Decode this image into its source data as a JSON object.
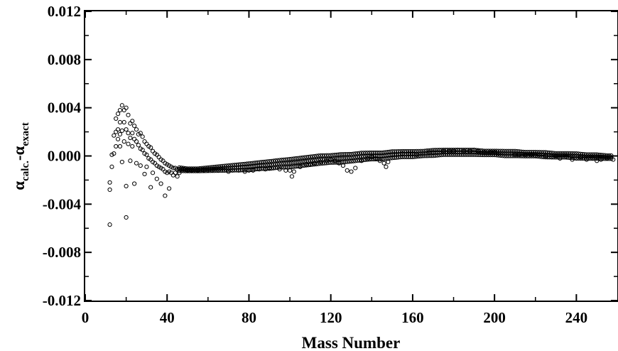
{
  "chart_data": {
    "type": "scatter",
    "title": "",
    "xlabel": "Mass Number",
    "ylabel": {
      "alpha_symbol": "α",
      "sub1": "calc.",
      "minus": "-",
      "sub2": "exact"
    },
    "xlim": [
      0,
      260
    ],
    "ylim": [
      -0.012,
      0.012
    ],
    "x_ticks": [
      0,
      40,
      80,
      120,
      160,
      200,
      240
    ],
    "x_tick_labels": [
      "0",
      "40",
      "80",
      "120",
      "160",
      "200",
      "240"
    ],
    "y_ticks": [
      -0.012,
      -0.008,
      -0.004,
      0,
      0.004,
      0.008,
      0.012
    ],
    "y_tick_labels": [
      "-0.012",
      "-0.008",
      "-0.004",
      "0.000",
      "0.004",
      "0.008",
      "0.012"
    ],
    "grid": false,
    "legend": "none",
    "marker": "open-circle",
    "marker_color": "#000000",
    "points": [
      [
        12,
        -0.0057
      ],
      [
        12,
        -0.0028
      ],
      [
        12,
        -0.0022
      ],
      [
        13,
        0.0001
      ],
      [
        13,
        -0.0009
      ],
      [
        14,
        0.0017
      ],
      [
        14,
        0.0002
      ],
      [
        15,
        0.0031
      ],
      [
        15,
        0.002
      ],
      [
        15,
        0.0008
      ],
      [
        16,
        0.0035
      ],
      [
        16,
        0.0022
      ],
      [
        16,
        0.0014
      ],
      [
        17,
        0.0038
      ],
      [
        17,
        0.0028
      ],
      [
        17,
        0.0018
      ],
      [
        17,
        0.0008
      ],
      [
        18,
        0.0042
      ],
      [
        18,
        0.0021
      ],
      [
        18,
        -0.0005
      ],
      [
        19,
        0.0038
      ],
      [
        19,
        0.0028
      ],
      [
        19,
        0.0012
      ],
      [
        20,
        0.004
      ],
      [
        20,
        0.0022
      ],
      [
        20,
        -0.0025
      ],
      [
        20,
        -0.0051
      ],
      [
        21,
        0.0034
      ],
      [
        21,
        0.0019
      ],
      [
        21,
        0.001
      ],
      [
        22,
        0.0027
      ],
      [
        22,
        0.0015
      ],
      [
        22,
        -0.0004
      ],
      [
        23,
        0.0029
      ],
      [
        23,
        0.0019
      ],
      [
        23,
        0.0008
      ],
      [
        24,
        0.0025
      ],
      [
        24,
        0.0014
      ],
      [
        24,
        -0.0023
      ],
      [
        25,
        0.0022
      ],
      [
        25,
        0.0012
      ],
      [
        25,
        -0.0006
      ],
      [
        26,
        0.0018
      ],
      [
        26,
        0.0009
      ],
      [
        27,
        0.0019
      ],
      [
        27,
        0.0006
      ],
      [
        27,
        -0.0008
      ],
      [
        28,
        0.0016
      ],
      [
        28,
        0.0005
      ],
      [
        29,
        0.0012
      ],
      [
        29,
        0.0002
      ],
      [
        29,
        -0.0015
      ],
      [
        30,
        0.001
      ],
      [
        30,
        0.0001
      ],
      [
        30,
        -0.0009
      ],
      [
        31,
        0.0008
      ],
      [
        31,
        -0.0002
      ],
      [
        32,
        0.0007
      ],
      [
        32,
        -0.0003
      ],
      [
        32,
        -0.0026
      ],
      [
        33,
        0.0004
      ],
      [
        33,
        -0.0005
      ],
      [
        33,
        -0.0014
      ],
      [
        34,
        0.0002
      ],
      [
        34,
        -0.0006
      ],
      [
        35,
        0.0001
      ],
      [
        35,
        -0.0008
      ],
      [
        35,
        -0.0019
      ],
      [
        36,
        -0.0001
      ],
      [
        36,
        -0.0009
      ],
      [
        37,
        -0.0003
      ],
      [
        37,
        -0.001
      ],
      [
        37,
        -0.0023
      ],
      [
        38,
        -0.0004
      ],
      [
        38,
        -0.0011
      ],
      [
        39,
        -0.0006
      ],
      [
        39,
        -0.0013
      ],
      [
        39,
        -0.0033
      ],
      [
        40,
        -0.0007
      ],
      [
        40,
        -0.0014
      ],
      [
        41,
        -0.0008
      ],
      [
        41,
        -0.0013
      ],
      [
        41,
        -0.0027
      ],
      [
        42,
        -0.0009
      ],
      [
        42,
        -0.0014
      ],
      [
        43,
        -0.001
      ],
      [
        43,
        -0.0016
      ],
      [
        44,
        -0.001
      ],
      [
        44,
        -0.0014
      ],
      [
        45,
        -0.0011
      ],
      [
        45,
        -0.0017
      ],
      [
        46,
        -0.0011
      ],
      [
        46,
        -0.0014
      ],
      [
        48,
        -0.0011
      ],
      [
        50,
        -0.0012
      ],
      [
        52,
        -0.0012
      ],
      [
        55,
        -0.0012
      ],
      [
        58,
        -0.0012
      ],
      [
        60,
        -0.0012
      ],
      [
        62,
        -0.0012
      ],
      [
        65,
        -0.0012
      ],
      [
        68,
        -0.0012
      ],
      [
        70,
        -0.0013
      ],
      [
        72,
        -0.0012
      ],
      [
        75,
        -0.0012
      ],
      [
        78,
        -0.0013
      ],
      [
        80,
        -0.0012
      ],
      [
        82,
        -0.0012
      ],
      [
        85,
        -0.0011
      ],
      [
        88,
        -0.0011
      ],
      [
        90,
        -0.001
      ],
      [
        92,
        -0.001
      ],
      [
        95,
        -0.0011
      ],
      [
        98,
        -0.0012
      ],
      [
        100,
        -0.0012
      ],
      [
        101,
        -0.0017
      ],
      [
        102,
        -0.0013
      ],
      [
        105,
        -0.0009
      ],
      [
        108,
        -0.0007
      ],
      [
        110,
        -0.0007
      ],
      [
        112,
        -0.0006
      ],
      [
        115,
        -0.0005
      ],
      [
        118,
        -0.0004
      ],
      [
        120,
        -0.0003
      ],
      [
        122,
        -0.0004
      ],
      [
        124,
        -0.0006
      ],
      [
        126,
        -0.0008
      ],
      [
        128,
        -0.0012
      ],
      [
        130,
        -0.0013
      ],
      [
        132,
        -0.001
      ],
      [
        135,
        -0.0004
      ],
      [
        138,
        -0.0002
      ],
      [
        140,
        -0.0001
      ],
      [
        142,
        -0.0002
      ],
      [
        144,
        -0.0004
      ],
      [
        146,
        -0.0006
      ],
      [
        147,
        -0.0009
      ],
      [
        148,
        -0.0005
      ],
      [
        150,
        0.0001
      ],
      [
        152,
        0.0001
      ],
      [
        155,
        0.0002
      ],
      [
        158,
        0.0002
      ],
      [
        160,
        0.0002
      ],
      [
        162,
        0.0001
      ],
      [
        165,
        0.0002
      ],
      [
        168,
        0.0003
      ],
      [
        170,
        0.0003
      ],
      [
        172,
        0.0003
      ],
      [
        175,
        0.0004
      ],
      [
        178,
        0.0004
      ],
      [
        180,
        0.0004
      ],
      [
        182,
        0.0005
      ],
      [
        185,
        0.0004
      ],
      [
        188,
        0.0004
      ],
      [
        190,
        0.0005
      ],
      [
        192,
        0.0004
      ],
      [
        195,
        0.0003
      ],
      [
        198,
        0.0003
      ],
      [
        200,
        0.0003
      ],
      [
        202,
        0.0002
      ],
      [
        205,
        0.0002
      ],
      [
        208,
        0.0002
      ],
      [
        210,
        0.0001
      ],
      [
        212,
        0.0001
      ],
      [
        215,
        0.0001
      ],
      [
        218,
        0.0001
      ],
      [
        220,
        0
      ],
      [
        222,
        0.0001
      ],
      [
        225,
        0
      ],
      [
        228,
        -0.0001
      ],
      [
        230,
        0
      ],
      [
        232,
        -0.0002
      ],
      [
        235,
        -0.0001
      ],
      [
        238,
        -0.0003
      ],
      [
        240,
        -0.0002
      ],
      [
        242,
        -0.0001
      ],
      [
        245,
        -0.0003
      ],
      [
        248,
        -0.0002
      ],
      [
        250,
        -0.0004
      ],
      [
        252,
        -0.0003
      ],
      [
        255,
        -0.0002
      ],
      [
        258,
        -0.0003
      ]
    ],
    "band": [
      [
        46,
        -0.0009,
        -0.0013
      ],
      [
        50,
        -0.001,
        -0.0013
      ],
      [
        55,
        -0.001,
        -0.0013
      ],
      [
        60,
        -0.0009,
        -0.0013
      ],
      [
        65,
        -0.0008,
        -0.0013
      ],
      [
        70,
        -0.0007,
        -0.0013
      ],
      [
        75,
        -0.0006,
        -0.0013
      ],
      [
        80,
        -0.0005,
        -0.0013
      ],
      [
        85,
        -0.0004,
        -0.0012
      ],
      [
        90,
        -0.0003,
        -0.0012
      ],
      [
        95,
        -0.0002,
        -0.0011
      ],
      [
        100,
        -0.0001,
        -0.0011
      ],
      [
        105,
        0,
        -0.001
      ],
      [
        110,
        0.0001,
        -0.0009
      ],
      [
        115,
        0.0002,
        -0.0008
      ],
      [
        120,
        0.0002,
        -0.0007
      ],
      [
        125,
        0.0003,
        -0.0007
      ],
      [
        130,
        0.0003,
        -0.0006
      ],
      [
        135,
        0.0004,
        -0.0005
      ],
      [
        140,
        0.0004,
        -0.0004
      ],
      [
        145,
        0.0004,
        -0.0004
      ],
      [
        150,
        0.0005,
        -0.0003
      ],
      [
        155,
        0.0005,
        -0.0002
      ],
      [
        160,
        0.0005,
        -0.0002
      ],
      [
        165,
        0.0005,
        -0.0001
      ],
      [
        170,
        0.0006,
        -0.0001
      ],
      [
        175,
        0.0006,
        0
      ],
      [
        180,
        0.0006,
        0
      ],
      [
        185,
        0.0006,
        0
      ],
      [
        190,
        0.0006,
        0
      ],
      [
        195,
        0.0005,
        0
      ],
      [
        200,
        0.0005,
        0
      ],
      [
        205,
        0.0005,
        -0.0001
      ],
      [
        210,
        0.0005,
        -0.0001
      ],
      [
        215,
        0.0004,
        -0.0001
      ],
      [
        220,
        0.0004,
        -0.0001
      ],
      [
        225,
        0.0004,
        -0.0002
      ],
      [
        230,
        0.0003,
        -0.0002
      ],
      [
        235,
        0.0003,
        -0.0002
      ],
      [
        240,
        0.0003,
        -0.0003
      ],
      [
        245,
        0.0002,
        -0.0003
      ],
      [
        250,
        0.0002,
        -0.0003
      ],
      [
        255,
        0.0001,
        -0.0003
      ],
      [
        258,
        0.0001,
        -0.0003
      ]
    ]
  }
}
